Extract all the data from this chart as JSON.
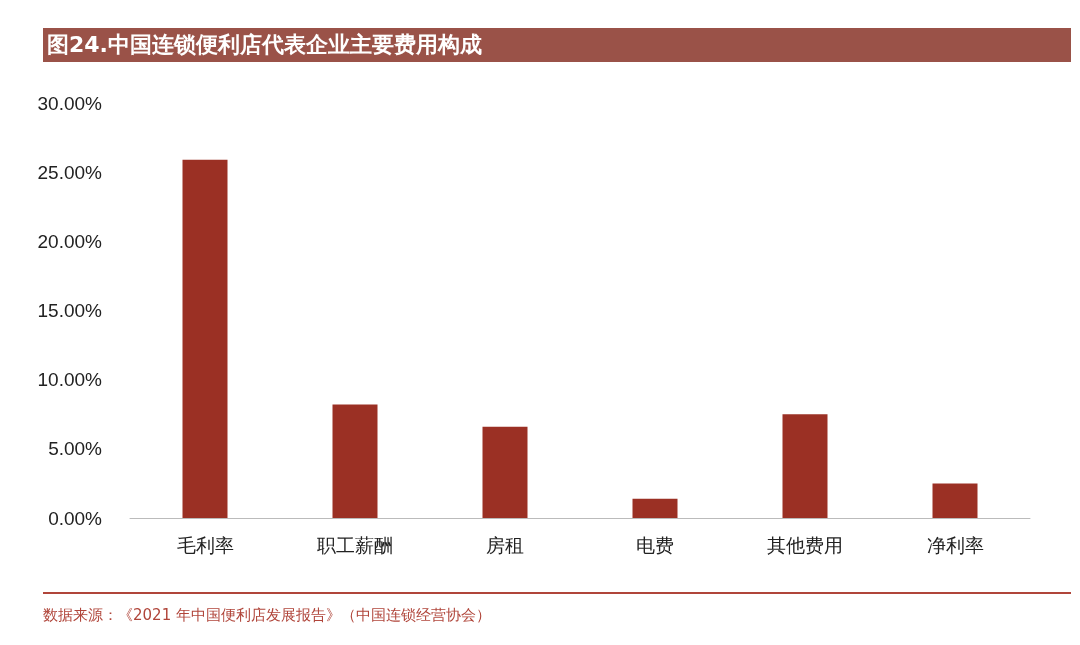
{
  "chart_data": {
    "type": "bar",
    "title": "图24.中国连锁便利店代表企业主要费用构成",
    "categories": [
      "毛利率",
      "职工薪酬",
      "房租",
      "电费",
      "其他费用",
      "净利率"
    ],
    "values": [
      25.9,
      8.2,
      6.6,
      1.4,
      7.5,
      2.5
    ],
    "color": "#9b3024",
    "ylim": [
      0,
      30
    ],
    "yticks": [
      {
        "value": 0,
        "label": "0.00%"
      },
      {
        "value": 5,
        "label": "5.00%"
      },
      {
        "value": 10,
        "label": "10.00%"
      },
      {
        "value": 15,
        "label": "15.00%"
      },
      {
        "value": 20,
        "label": "20.00%"
      },
      {
        "value": 25,
        "label": "25.00%"
      },
      {
        "value": 30,
        "label": "30.00%"
      }
    ],
    "grid": false,
    "annotations": [
      "数据来源：《2021 年中国便利店发展报告》（中国连锁经营协会）"
    ]
  }
}
